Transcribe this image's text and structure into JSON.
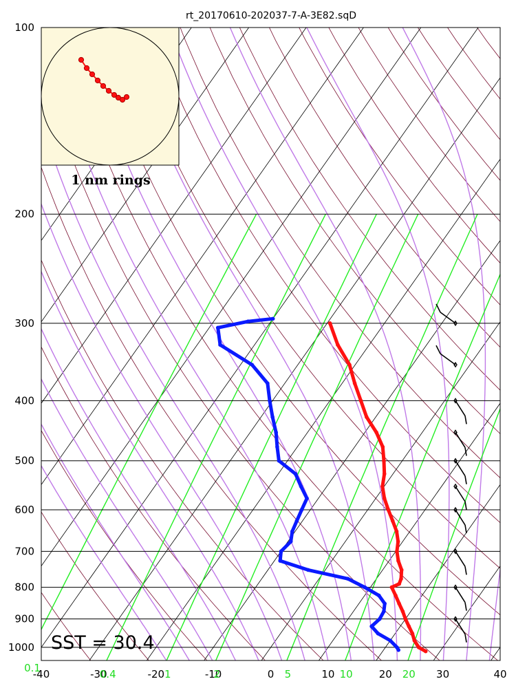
{
  "title": "rt_20170610-202037-7-A-3E82.sqD",
  "sst_label": "SST = 30.4",
  "hodograph_label": "1 nm rings",
  "colors": {
    "temperature": "#ff1111",
    "dewpoint": "#0a1aff",
    "isotherm": "#000000",
    "dry_adiabat": "#7a1030",
    "moist_adiabat": "#c07ae8",
    "mixing_ratio": "#22ee22",
    "hodograph_bg": "#fdf8dc",
    "hodograph_trace": "#ff1111"
  },
  "chart_data": {
    "type": "skew-t",
    "pressure_ticks": [
      "100",
      "200",
      "300",
      "400",
      "500",
      "600",
      "700",
      "800",
      "900",
      "1000"
    ],
    "temperature_ticks": [
      "-40",
      "-30",
      "-20",
      "-10",
      "0",
      "10",
      "20",
      "30",
      "40"
    ],
    "mixing_ratio_labels": [
      "0.1",
      "0.4",
      "1",
      "2",
      "5",
      "10",
      "20"
    ],
    "pressure_range": [
      100,
      1050
    ],
    "temperature_range": [
      -40,
      40
    ],
    "temperature_profile": [
      {
        "p": 1015,
        "t": 27.5
      },
      {
        "p": 1000,
        "t": 25.8
      },
      {
        "p": 975,
        "t": 24.2
      },
      {
        "p": 950,
        "t": 23.0
      },
      {
        "p": 925,
        "t": 21.5
      },
      {
        "p": 900,
        "t": 20.0
      },
      {
        "p": 875,
        "t": 18.6
      },
      {
        "p": 850,
        "t": 17.0
      },
      {
        "p": 825,
        "t": 15.4
      },
      {
        "p": 800,
        "t": 13.7
      },
      {
        "p": 790,
        "t": 14.6
      },
      {
        "p": 775,
        "t": 14.3
      },
      {
        "p": 750,
        "t": 13.3
      },
      {
        "p": 725,
        "t": 11.6
      },
      {
        "p": 700,
        "t": 10.2
      },
      {
        "p": 675,
        "t": 9.2
      },
      {
        "p": 650,
        "t": 7.7
      },
      {
        "p": 625,
        "t": 5.7
      },
      {
        "p": 600,
        "t": 3.6
      },
      {
        "p": 575,
        "t": 1.5
      },
      {
        "p": 550,
        "t": -0.3
      },
      {
        "p": 525,
        "t": -1.5
      },
      {
        "p": 500,
        "t": -3.2
      },
      {
        "p": 475,
        "t": -5.1
      },
      {
        "p": 450,
        "t": -8.0
      },
      {
        "p": 425,
        "t": -11.6
      },
      {
        "p": 400,
        "t": -14.6
      },
      {
        "p": 375,
        "t": -17.8
      },
      {
        "p": 350,
        "t": -21.0
      },
      {
        "p": 325,
        "t": -25.5
      },
      {
        "p": 300,
        "t": -29.5
      }
    ],
    "dewpoint_profile": [
      {
        "p": 1010,
        "t": 22.6
      },
      {
        "p": 1000,
        "t": 22.0
      },
      {
        "p": 975,
        "t": 20.0
      },
      {
        "p": 950,
        "t": 17.0
      },
      {
        "p": 925,
        "t": 15.0
      },
      {
        "p": 900,
        "t": 15.5
      },
      {
        "p": 875,
        "t": 15.3
      },
      {
        "p": 850,
        "t": 14.5
      },
      {
        "p": 825,
        "t": 12.5
      },
      {
        "p": 800,
        "t": 9.0
      },
      {
        "p": 775,
        "t": 5.0
      },
      {
        "p": 750,
        "t": -3.0
      },
      {
        "p": 725,
        "t": -9.0
      },
      {
        "p": 700,
        "t": -10.0
      },
      {
        "p": 675,
        "t": -9.5
      },
      {
        "p": 650,
        "t": -10.5
      },
      {
        "p": 625,
        "t": -11.0
      },
      {
        "p": 600,
        "t": -11.5
      },
      {
        "p": 575,
        "t": -12.0
      },
      {
        "p": 550,
        "t": -14.5
      },
      {
        "p": 525,
        "t": -17.0
      },
      {
        "p": 500,
        "t": -21.5
      },
      {
        "p": 475,
        "t": -23.5
      },
      {
        "p": 450,
        "t": -25.5
      },
      {
        "p": 425,
        "t": -28.0
      },
      {
        "p": 400,
        "t": -30.5
      },
      {
        "p": 375,
        "t": -33.0
      },
      {
        "p": 350,
        "t": -38.0
      },
      {
        "p": 325,
        "t": -46.0
      },
      {
        "p": 305,
        "t": -48.5
      },
      {
        "p": 298,
        "t": -44.0
      },
      {
        "p": 295,
        "t": -40.0
      }
    ],
    "hodograph": {
      "trace": [
        {
          "u": -0.42,
          "v": 0.53
        },
        {
          "u": -0.34,
          "v": 0.41
        },
        {
          "u": -0.26,
          "v": 0.32
        },
        {
          "u": -0.18,
          "v": 0.23
        },
        {
          "u": -0.1,
          "v": 0.15
        },
        {
          "u": -0.02,
          "v": 0.08
        },
        {
          "u": 0.06,
          "v": 0.02
        },
        {
          "u": 0.12,
          "v": -0.02
        },
        {
          "u": 0.18,
          "v": -0.05
        },
        {
          "u": 0.24,
          "v": -0.01
        }
      ],
      "ring_spacing": "1 nm"
    },
    "wind_barbs": [
      {
        "p": 300
      },
      {
        "p": 350
      },
      {
        "p": 400
      },
      {
        "p": 450
      },
      {
        "p": 500
      },
      {
        "p": 550
      },
      {
        "p": 600
      },
      {
        "p": 700
      },
      {
        "p": 800
      },
      {
        "p": 900
      }
    ]
  }
}
